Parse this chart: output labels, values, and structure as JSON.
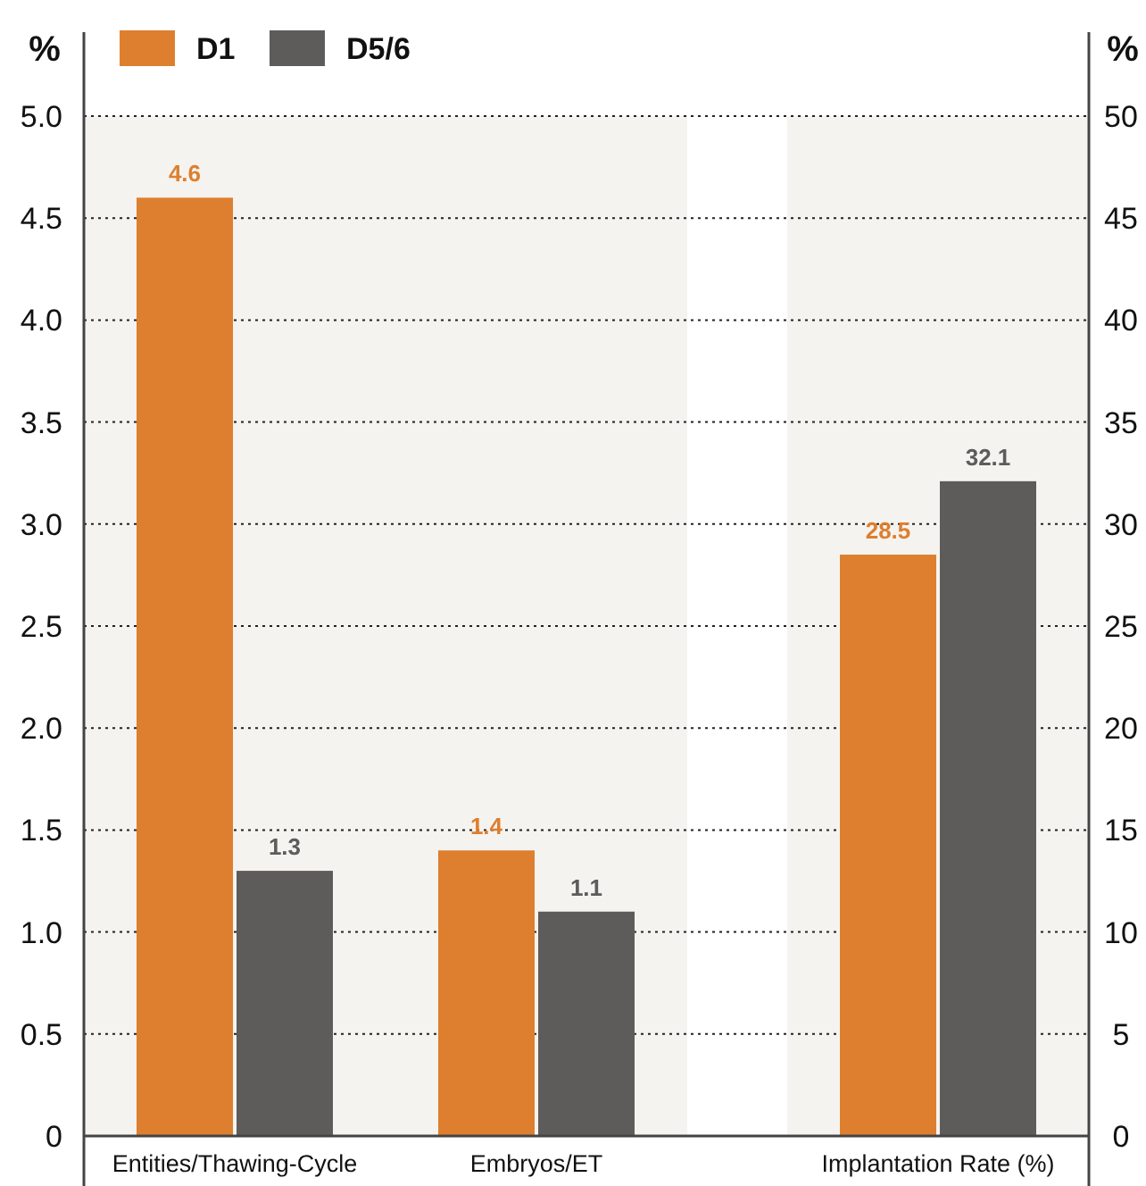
{
  "chart_data": {
    "type": "bar",
    "categories": [
      "Entities/Thawing-Cycle",
      "Embryos/ET",
      "Implantation Rate (%)"
    ],
    "series": [
      {
        "name": "D1",
        "color": "#dd7f2e",
        "values": [
          4.6,
          1.4,
          null
        ]
      },
      {
        "name": "D5/6",
        "color": "#5e5c5b",
        "values": [
          1.3,
          1.1,
          null
        ]
      },
      {
        "color": "#dd7f2e",
        "values": [
          null,
          null,
          28.5
        ],
        "axis": "y2"
      },
      {
        "color": "#5e5c5b",
        "values": [
          null,
          null,
          32.1
        ],
        "axis": "y2"
      }
    ],
    "ylabel": "%",
    "y2label": "%",
    "ylim": [
      0,
      5
    ],
    "yticks": [
      0,
      0.5,
      {
        "value": 1,
        "label": "1.0"
      },
      1.5,
      {
        "value": 2,
        "label": "2.0"
      },
      2.5,
      {
        "value": 3,
        "label": "3.0"
      },
      3.5,
      {
        "value": 4,
        "label": "4.0"
      },
      4.5,
      {
        "value": 5,
        "label": "5.0"
      }
    ],
    "y2lim": [
      0,
      50
    ],
    "y2ticks": [
      0,
      5,
      10,
      15,
      20,
      25,
      30,
      35,
      40,
      45,
      50
    ],
    "bands": [
      {
        "axis": "x",
        "from": "Entities/Thawing-Cycle",
        "to": "Embryos/ET",
        "color": "#f5f3ef"
      },
      {
        "axis": "x",
        "from": "Implantation Rate (%)",
        "to": "Implantation Rate (%)",
        "color": "#f5f3ef"
      }
    ],
    "grid": "y",
    "legend": "top left",
    "data_labels": true
  }
}
